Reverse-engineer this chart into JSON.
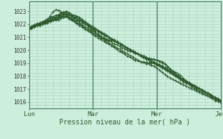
{
  "title": "Pression niveau de la mer( hPa )",
  "bg_color": "#cceedd",
  "grid_minor_color": "#aaccbb",
  "grid_major_color": "#3d7a5a",
  "line_color": "#2d5a2d",
  "line_color2": "#336633",
  "x_tick_labels": [
    "Lun",
    "Mar",
    "Mer",
    "Jeu"
  ],
  "x_tick_pos": [
    0,
    48,
    96,
    144
  ],
  "ylim": [
    1015.5,
    1023.75
  ],
  "yticks": [
    1016,
    1017,
    1018,
    1019,
    1020,
    1021,
    1022,
    1023
  ],
  "total_hours": 144
}
